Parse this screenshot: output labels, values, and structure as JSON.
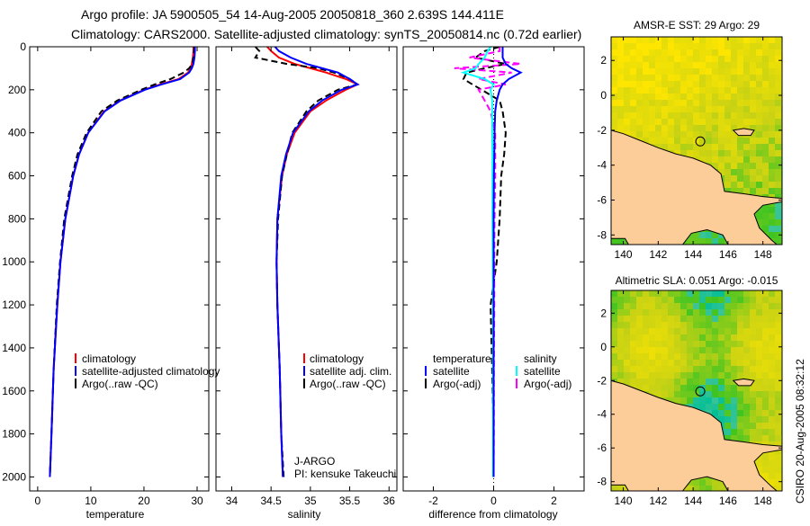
{
  "title": {
    "line1": "Argo profile: JA 5900505_54 14-Aug-2005 20050818_360 2.639S 144.411E",
    "line2": "Climatology: CARS2000. Satellite-adjusted climatology: synTS_20050814.nc (0.72d earlier)"
  },
  "footer_stamp": "CSIRO 20-Aug-2005 08:32:12",
  "colors": {
    "climatology": "#ff0000",
    "satellite": "#0000ff",
    "argo": "#000000",
    "sal_satellite": "#00ffff",
    "sal_argo": "#ff00ff",
    "land": "#fccc99"
  },
  "chart_data": [
    {
      "type": "line",
      "xlabel": "temperature",
      "ylabel": "",
      "xlim": [
        -1.5,
        32.2
      ],
      "ylim": [
        2065,
        0
      ],
      "xticks": [
        "0",
        "10",
        "20",
        "30"
      ],
      "xtick_values": [
        0,
        10,
        20,
        30
      ],
      "yticks": [
        "0",
        "200",
        "400",
        "600",
        "800",
        "1000",
        "1200",
        "1400",
        "1600",
        "1800",
        "2000"
      ],
      "ytick_values": [
        0,
        200,
        400,
        600,
        800,
        1000,
        1200,
        1400,
        1600,
        1800,
        2000
      ],
      "depth": [
        0,
        20,
        50,
        80,
        100,
        120,
        150,
        175,
        200,
        250,
        300,
        400,
        500,
        600,
        800,
        1000,
        1200,
        1500,
        1800,
        2000
      ],
      "legend": [
        "climatology",
        "satellite-adjusted climatology",
        "Argo(..raw -QC)"
      ],
      "series": [
        {
          "name": "climatology",
          "color": "#ff0000",
          "dash": false,
          "values": [
            29.3,
            29.3,
            29.2,
            29.0,
            28.8,
            28.3,
            26.5,
            23,
            20,
            15.5,
            12.5,
            9.5,
            7.8,
            6.7,
            5.2,
            4.3,
            3.7,
            3.0,
            2.6,
            2.3
          ]
        },
        {
          "name": "Argo(..raw -QC)",
          "color": "#000000",
          "dash": true,
          "values": [
            29.5,
            29.4,
            29.3,
            29.1,
            28.5,
            27.5,
            25,
            22,
            19.5,
            15,
            12,
            9.2,
            7.5,
            6.5,
            5.0,
            4.2,
            3.6,
            3.0,
            2.6,
            2.3
          ]
        },
        {
          "name": "satellite-adjusted climatology",
          "color": "#0000ff",
          "dash": false,
          "values": [
            29.6,
            29.6,
            29.5,
            29.3,
            29,
            28.5,
            26.8,
            23.3,
            20.2,
            15.6,
            12.6,
            9.5,
            7.8,
            6.7,
            5.2,
            4.3,
            3.7,
            3.0,
            2.6,
            2.3
          ]
        }
      ]
    },
    {
      "type": "line",
      "xlabel": "salinity",
      "xlim": [
        33.8,
        36.1
      ],
      "ylim": [
        2065,
        0
      ],
      "xticks": [
        "34",
        "34.5",
        "35",
        "35.5",
        "36"
      ],
      "xtick_values": [
        34,
        34.5,
        35,
        35.5,
        36
      ],
      "depth": [
        0,
        20,
        50,
        80,
        100,
        120,
        150,
        175,
        200,
        250,
        300,
        400,
        500,
        600,
        800,
        1000,
        1200,
        1500,
        1800,
        2000
      ],
      "legend": [
        "climatology",
        "satellite adj. clim.",
        "Argo(..raw -QC)"
      ],
      "annotation": [
        "J-ARGO",
        "PI: kensuke Takeuchi"
      ],
      "series": [
        {
          "name": "climatology",
          "color": "#ff0000",
          "dash": false,
          "values": [
            34.45,
            34.5,
            34.6,
            34.8,
            35.0,
            35.2,
            35.45,
            35.6,
            35.45,
            35.2,
            35.0,
            34.8,
            34.7,
            34.64,
            34.58,
            34.57,
            34.58,
            34.61,
            34.63,
            34.65
          ]
        },
        {
          "name": "Argo(..raw -QC)",
          "color": "#000000",
          "dash": true,
          "values": [
            34.3,
            34.35,
            34.3,
            34.7,
            35.1,
            35.3,
            35.5,
            35.6,
            35.35,
            35.1,
            34.95,
            34.77,
            34.7,
            34.64,
            34.59,
            34.57,
            34.58,
            34.61,
            34.63,
            34.66
          ]
        },
        {
          "name": "satellite adj. clim.",
          "color": "#0000ff",
          "dash": false,
          "values": [
            34.55,
            34.6,
            34.75,
            34.95,
            35.15,
            35.35,
            35.5,
            35.6,
            35.4,
            35.15,
            34.98,
            34.78,
            34.69,
            34.63,
            34.58,
            34.57,
            34.58,
            34.61,
            34.63,
            34.65
          ]
        }
      ]
    },
    {
      "type": "line",
      "xlabel": "difference from climatology",
      "xlim": [
        -3,
        3
      ],
      "ylim": [
        2065,
        0
      ],
      "xticks": [
        "-2",
        "0",
        "2"
      ],
      "xtick_values": [
        -2,
        0,
        2
      ],
      "depth": [
        0,
        20,
        50,
        80,
        100,
        120,
        150,
        175,
        200,
        250,
        300,
        400,
        500,
        600,
        800,
        1000,
        1200,
        1500,
        1800,
        2000
      ],
      "legend_headers": [
        "temperature",
        "salinity"
      ],
      "legend": [
        "satellite",
        "Argo(-adj)",
        "satellite",
        "Argo(-adj)"
      ],
      "series": [
        {
          "name": "temperature Argo(-adj)",
          "color": "#000000",
          "dash": true,
          "values": [
            0.2,
            -0.3,
            -0.6,
            0.4,
            -0.3,
            -0.9,
            -1.0,
            -0.7,
            -0.4,
            0.2,
            0.3,
            0.4,
            0.35,
            0.25,
            0.2,
            0.1,
            -0.1,
            -0.05,
            0,
            0
          ]
        },
        {
          "name": "salinity Argo(-adj)",
          "color": "#ff00ff",
          "dash": true,
          "values": [
            0.2,
            0.2,
            -0.8,
            0.9,
            -1.3,
            0.6,
            -0.5,
            0.4,
            -0.5,
            -0.3,
            -0.1,
            0.05,
            0.05,
            0.05,
            0.03,
            0.02,
            0.02,
            0.01,
            0.01,
            0
          ]
        },
        {
          "name": "salinity satellite",
          "color": "#00ffff",
          "dash": false,
          "values": [
            -0.1,
            -0.2,
            -0.3,
            -0.5,
            -0.6,
            -1.0,
            -0.3,
            0,
            -0.1,
            -0.05,
            -0.05,
            -0.05,
            -0.04,
            -0.04,
            -0.04,
            -0.03,
            -0.02,
            -0.02,
            -0.02,
            -0.02
          ]
        },
        {
          "name": "temperature satellite",
          "color": "#0000ff",
          "dash": false,
          "values": [
            0.3,
            0.3,
            0.3,
            0.4,
            0.6,
            0.9,
            0.5,
            0.3,
            0.2,
            0.1,
            0.05,
            0.03,
            0.02,
            0.01,
            0,
            0,
            0,
            0,
            0,
            0
          ]
        }
      ]
    },
    {
      "type": "heatmap",
      "title": "AMSR-E SST: 29 Argo: 29",
      "xlim": [
        139.3,
        149.1
      ],
      "ylim": [
        -8.55,
        3.35
      ],
      "xticks": [
        "140",
        "142",
        "144",
        "146",
        "148"
      ],
      "xtick_values": [
        140,
        142,
        144,
        146,
        148
      ],
      "yticks": [
        "2",
        "0",
        "-2",
        "-4",
        "-6",
        "-8"
      ],
      "ytick_values": [
        2,
        0,
        -2,
        -4,
        -6,
        -8
      ],
      "float_position": [
        144.411,
        -2.639
      ]
    },
    {
      "type": "heatmap",
      "title": "Altimetric SLA: 0.051 Argo: -0.015",
      "xlim": [
        139.3,
        149.1
      ],
      "ylim": [
        -8.55,
        3.35
      ],
      "xticks": [
        "140",
        "142",
        "144",
        "146",
        "148"
      ],
      "xtick_values": [
        140,
        142,
        144,
        146,
        148
      ],
      "yticks": [
        "2",
        "0",
        "-2",
        "-4",
        "-6",
        "-8"
      ],
      "ytick_values": [
        2,
        0,
        -2,
        -4,
        -6,
        -8
      ],
      "float_position": [
        144.411,
        -2.639
      ]
    }
  ]
}
